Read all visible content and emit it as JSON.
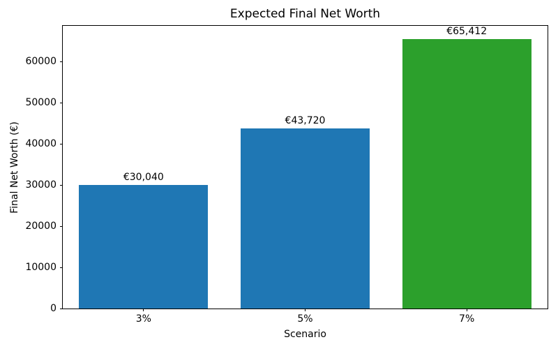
{
  "chart_data": {
    "type": "bar",
    "title": "Expected Final Net Worth",
    "xlabel": "Scenario",
    "ylabel": "Final Net Worth (€)",
    "categories": [
      "3%",
      "5%",
      "7%"
    ],
    "values": [
      30040,
      43720,
      65412
    ],
    "bar_value_labels": [
      "€30,040",
      "€43,720",
      "€65,412"
    ],
    "bar_colors": [
      "#1f77b4",
      "#1f77b4",
      "#2ca02c"
    ],
    "ylim": [
      0,
      68700
    ],
    "yticks": [
      0,
      10000,
      20000,
      30000,
      40000,
      50000,
      60000
    ],
    "ytick_labels": [
      "0",
      "10000",
      "20000",
      "30000",
      "40000",
      "50000",
      "60000"
    ],
    "grid": false,
    "legend_position": "none",
    "bar_width_fraction": 0.8
  },
  "colors": {
    "background": "#ffffff",
    "spine": "#000000",
    "text": "#000000",
    "bar_blue": "#1f77b4",
    "bar_green": "#2ca02c"
  }
}
